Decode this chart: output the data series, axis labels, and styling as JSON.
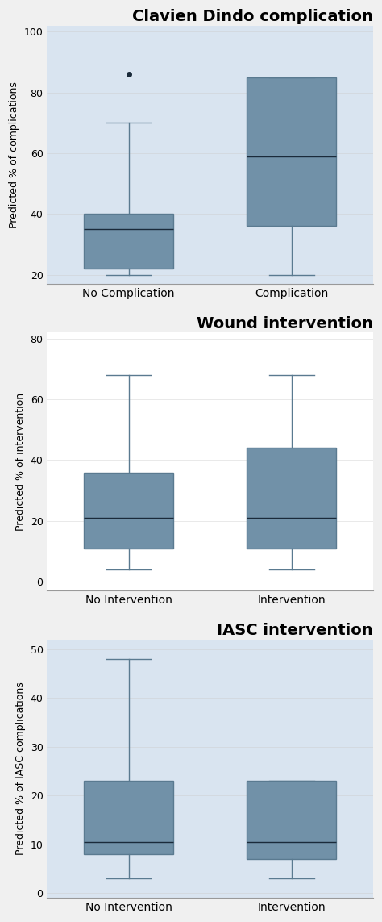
{
  "plots": [
    {
      "title": "Clavien Dindo complication",
      "ylabel": "Predicted % of complications",
      "ylim": [
        17,
        102
      ],
      "yticks": [
        20,
        40,
        60,
        80,
        100
      ],
      "categories": [
        "No Complication",
        "Complication"
      ],
      "boxes": [
        {
          "whislo": 20,
          "q1": 22,
          "med": 35,
          "q3": 40,
          "whishi": 70,
          "fliers": [
            86
          ]
        },
        {
          "whislo": 20,
          "q1": 36,
          "med": 59,
          "q3": 85,
          "whishi": 85,
          "fliers": []
        }
      ],
      "bg_color": "#d9e4f0"
    },
    {
      "title": "Wound intervention",
      "ylabel": "Predicted % of intervention",
      "ylim": [
        -3,
        82
      ],
      "yticks": [
        0,
        20,
        40,
        60,
        80
      ],
      "categories": [
        "No Intervention",
        "Intervention"
      ],
      "boxes": [
        {
          "whislo": 4,
          "q1": 11,
          "med": 21,
          "q3": 36,
          "whishi": 68,
          "fliers": []
        },
        {
          "whislo": 4,
          "q1": 11,
          "med": 21,
          "q3": 44,
          "whishi": 68,
          "fliers": []
        }
      ],
      "bg_color": "#ffffff"
    },
    {
      "title": "IASC intervention",
      "ylabel": "Predicted % of IASC complications",
      "ylim": [
        -1,
        52
      ],
      "yticks": [
        0,
        10,
        20,
        30,
        40,
        50
      ],
      "categories": [
        "No Intervention",
        "Intervention"
      ],
      "boxes": [
        {
          "whislo": 3,
          "q1": 8,
          "med": 10.5,
          "q3": 23,
          "whishi": 48,
          "fliers": []
        },
        {
          "whislo": 3,
          "q1": 7,
          "med": 10.5,
          "q3": 23,
          "whishi": 23,
          "fliers": []
        }
      ],
      "bg_color": "#d9e4f0"
    }
  ],
  "box_facecolor": "#7191a8",
  "box_edgecolor": "#5a7a90",
  "median_color": "#1a2a3a",
  "whisker_color": "#5a7a90",
  "cap_color": "#5a7a90",
  "flier_color": "#1a2a3a",
  "line_width": 1.0,
  "box_width": 0.55,
  "figure_bg": "#f0f0f0",
  "title_fontsize": 14,
  "ylabel_fontsize": 9,
  "tick_fontsize": 9,
  "xtick_fontsize": 10
}
